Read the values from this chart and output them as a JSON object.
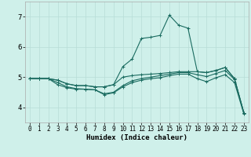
{
  "title": "",
  "xlabel": "Humidex (Indice chaleur)",
  "xlim": [
    -0.5,
    23.5
  ],
  "ylim": [
    3.5,
    7.5
  ],
  "xticks": [
    0,
    1,
    2,
    3,
    4,
    5,
    6,
    7,
    8,
    9,
    10,
    11,
    12,
    13,
    14,
    15,
    16,
    17,
    18,
    19,
    20,
    21,
    22,
    23
  ],
  "yticks": [
    4,
    5,
    6,
    7
  ],
  "background_color": "#cff0ea",
  "grid_color": "#b8ddd7",
  "line_color": "#1a6b60",
  "lines": [
    [
      4.95,
      4.95,
      4.95,
      4.9,
      4.78,
      4.72,
      4.72,
      4.68,
      4.68,
      4.75,
      5.0,
      5.05,
      5.08,
      5.1,
      5.12,
      5.15,
      5.18,
      5.18,
      5.18,
      5.15,
      5.22,
      5.32,
      4.95,
      3.82
    ],
    [
      4.95,
      4.95,
      4.95,
      4.82,
      4.68,
      4.62,
      4.6,
      4.58,
      4.45,
      4.5,
      4.72,
      4.88,
      4.95,
      5.0,
      5.05,
      5.1,
      5.15,
      5.15,
      5.08,
      5.02,
      5.12,
      5.22,
      4.92,
      3.82
    ],
    [
      4.95,
      4.95,
      4.95,
      4.75,
      4.65,
      4.6,
      4.6,
      4.58,
      4.42,
      4.48,
      4.68,
      4.82,
      4.9,
      4.95,
      4.98,
      5.05,
      5.1,
      5.1,
      4.95,
      4.85,
      4.98,
      5.08,
      4.82,
      3.78
    ],
    [
      4.95,
      4.95,
      4.95,
      4.9,
      4.78,
      4.72,
      4.72,
      4.68,
      4.68,
      4.75,
      5.35,
      5.6,
      6.28,
      6.32,
      6.38,
      7.05,
      6.72,
      6.62,
      5.18,
      5.15,
      5.22,
      5.32,
      4.95,
      3.82
    ]
  ]
}
